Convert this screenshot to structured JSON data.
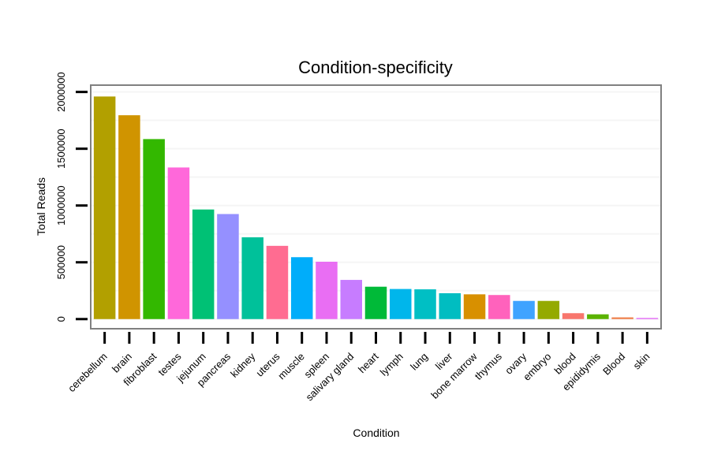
{
  "chart_data": {
    "type": "bar",
    "title": "Condition-specificity",
    "xlabel": "Condition",
    "ylabel": "Total Reads",
    "ylim": [
      -85000,
      2060000
    ],
    "yticks": [
      0,
      500000,
      1000000,
      1500000,
      2000000
    ],
    "ytick_labels": [
      "0",
      "500000",
      "1000000",
      "1500000",
      "2000000"
    ],
    "grid": true,
    "legend": "none",
    "categories": [
      "cerebellum",
      "brain",
      "fibroblast",
      "testes",
      "jejunum",
      "pancreas",
      "kidney",
      "uterus",
      "muscle",
      "spleen",
      "salivary gland",
      "heart",
      "lymph",
      "lung",
      "liver",
      "bone marrow",
      "thymus",
      "ovary",
      "embryo",
      "blood",
      "epididymis",
      "Blood",
      "skin"
    ],
    "values": [
      1960000,
      1795000,
      1585000,
      1335000,
      965000,
      925000,
      720000,
      645000,
      545000,
      505000,
      345000,
      285000,
      265000,
      262000,
      228000,
      218000,
      212000,
      160000,
      160000,
      52000,
      42000,
      15000,
      10000
    ],
    "colors": [
      "#B2A000",
      "#D09400",
      "#33B800",
      "#FF68DA",
      "#00C175",
      "#9590FF",
      "#00C19A",
      "#FF6C91",
      "#00ADFA",
      "#E96EF3",
      "#C77CFF",
      "#00BA38",
      "#00B6EB",
      "#00BFC4",
      "#00BDC1",
      "#D89000",
      "#FF62BC",
      "#3FA3FF",
      "#94AA00",
      "#F8766D",
      "#5BB300",
      "#EF7F49",
      "#E36EF6"
    ]
  }
}
